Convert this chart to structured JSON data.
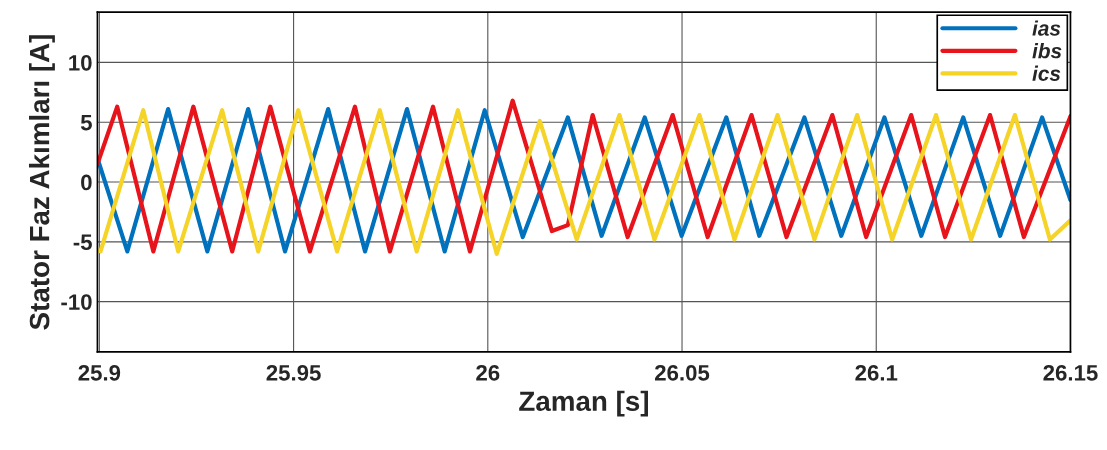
{
  "chart_data": {
    "type": "line",
    "xlabel": "Zaman [s]",
    "ylabel": "Stator Faz Akımları [A]",
    "xlim": [
      25.8995,
      26.15
    ],
    "ylim": [
      -14.2,
      14.2
    ],
    "xticks": [
      25.9,
      25.95,
      26,
      26.05,
      26.1,
      26.15
    ],
    "yticks": [
      -10,
      -5,
      0,
      5,
      10
    ],
    "grid": true,
    "legend": "top right",
    "line_style": "solid",
    "marker": "none",
    "series": [
      {
        "name": "ias",
        "color": "#0072bd",
        "x": [
          25.8995,
          25.9072,
          25.9177,
          25.9278,
          25.9383,
          25.9478,
          25.9589,
          25.9684,
          25.9792,
          25.9889,
          25.9992,
          26.009,
          26.0206,
          26.0293,
          26.0404,
          26.0499,
          26.0614,
          26.0699,
          26.0815,
          26.091,
          26.1021,
          26.1116,
          26.1224,
          26.1319,
          26.1427,
          26.15
        ],
        "values": [
          2,
          -5.8,
          6.1,
          -5.8,
          6.1,
          -5.8,
          6.1,
          -5.8,
          6.1,
          -5.8,
          6,
          -4.6,
          5.4,
          -4.5,
          5.4,
          -4.5,
          5.4,
          -4.5,
          5.4,
          -4.5,
          5.4,
          -4.5,
          5.4,
          -4.5,
          5.4,
          -1.5
        ]
      },
      {
        "name": "ibs",
        "color": "#e8141c",
        "x": [
          25.8995,
          25.9046,
          25.9139,
          25.9242,
          25.9342,
          25.944,
          25.9542,
          25.9658,
          25.9748,
          25.9859,
          25.9954,
          26.0064,
          26.0165,
          26.0206,
          26.027,
          26.036,
          26.0476,
          26.0566,
          26.0679,
          26.0769,
          26.0887,
          26.0974,
          26.109,
          26.1177,
          26.1293,
          26.138,
          26.15
        ],
        "values": [
          1.5,
          6.3,
          -5.8,
          6.3,
          -5.8,
          6.3,
          -5.8,
          6.3,
          -5.8,
          6.3,
          -5.8,
          6.8,
          -4.1,
          -3.6,
          5.6,
          -4.6,
          5.6,
          -4.6,
          5.6,
          -4.6,
          5.6,
          -4.6,
          5.6,
          -4.6,
          5.6,
          -4.6,
          5.5
        ]
      },
      {
        "name": "ics",
        "color": "#f5d327",
        "x": [
          25.8995,
          25.9003,
          25.9113,
          25.9203,
          25.9316,
          25.9409,
          25.9512,
          25.9612,
          25.9722,
          25.9817,
          25.9923,
          26.0023,
          26.0134,
          26.0229,
          26.0339,
          26.0429,
          26.0545,
          26.0635,
          26.0746,
          26.0841,
          26.0951,
          26.1041,
          26.1154,
          26.1244,
          26.1357,
          26.1447,
          26.15
        ],
        "values": [
          -5.7,
          -5.8,
          6,
          -5.8,
          6,
          -5.8,
          6,
          -5.8,
          6,
          -5.8,
          6,
          -6,
          5.1,
          -4.8,
          5.6,
          -4.8,
          5.6,
          -4.8,
          5.6,
          -4.8,
          5.6,
          -4.8,
          5.6,
          -4.8,
          5.6,
          -4.8,
          -3.2
        ]
      }
    ]
  }
}
